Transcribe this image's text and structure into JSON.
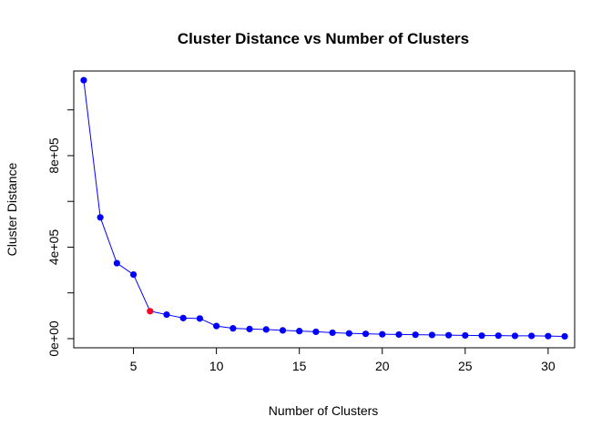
{
  "chart_data": {
    "type": "line",
    "title": "Cluster Distance vs Number of Clusters",
    "xlabel": "Number of Clusters",
    "ylabel": "Cluster Distance",
    "xlim": [
      1.4,
      31.6
    ],
    "ylim": [
      -40000,
      1170000
    ],
    "x_ticks": [
      5,
      10,
      15,
      20,
      25,
      30
    ],
    "x_tick_labels": [
      "5",
      "10",
      "15",
      "20",
      "25",
      "30"
    ],
    "y_ticks": [
      0,
      200000,
      400000,
      600000,
      800000,
      1000000
    ],
    "y_tick_labels": [
      "0e+00",
      "",
      "4e+05",
      "",
      "8e+05",
      ""
    ],
    "grid": false,
    "series": [
      {
        "x": [
          2,
          3,
          4,
          5,
          6,
          7,
          8,
          9,
          10,
          11,
          12,
          13,
          14,
          15,
          16,
          17,
          18,
          19,
          20,
          21,
          22,
          23,
          24,
          25,
          26,
          27,
          28,
          29,
          30,
          31
        ],
        "values": [
          1130000,
          530000,
          330000,
          280000,
          120000,
          105000,
          90000,
          88000,
          55000,
          45000,
          42000,
          40000,
          36000,
          33000,
          30000,
          26000,
          23000,
          21000,
          19000,
          18000,
          17000,
          16000,
          15000,
          14000,
          13000,
          13000,
          12000,
          12000,
          11000,
          10000
        ],
        "color": "#0000ff"
      }
    ],
    "highlight": {
      "x": 6,
      "value": 120000,
      "color": "#ff0022"
    }
  }
}
